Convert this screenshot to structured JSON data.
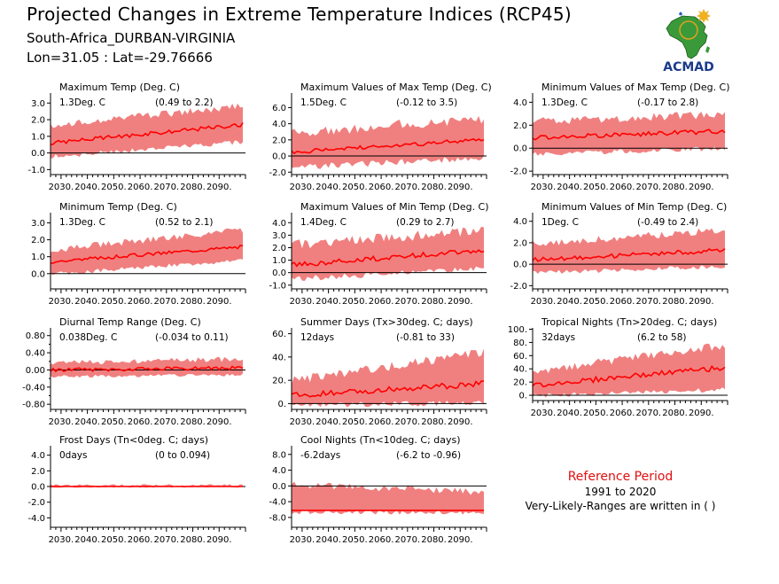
{
  "header": {
    "title": "Projected Changes in Extreme Temperature Indices (RCP45)",
    "location": "South-Africa_DURBAN-VIRGINIA",
    "coords": "Lon=31.05 : Lat=-29.76666"
  },
  "logo": {
    "text": "ACMAD",
    "icon": "africa-map-logo"
  },
  "reference": {
    "title": "Reference Period",
    "years": "1991 to 2020",
    "note": "Very-Likely-Ranges are written in ( )"
  },
  "colors": {
    "band": "#f08080",
    "line": "#ff0000",
    "axis": "#000000",
    "ref_title": "#e01010"
  },
  "chart_data": [
    {
      "type": "area",
      "title": "Maximum Temp (Deg. C)",
      "change": "1.3Deg. C",
      "range": "(0.49 to 2.2)",
      "x_ticks": [
        "2030.",
        "2040.",
        "2050.",
        "2060.",
        "2070.",
        "2080.",
        "2090."
      ],
      "xlim": [
        2026,
        2100
      ],
      "ylim": [
        -1.3,
        3.6
      ],
      "y_ticks": [
        -1.0,
        0.0,
        1.0,
        2.0,
        3.0
      ],
      "y_tick_labels": [
        "-1.0",
        "0.0",
        "1.0",
        "2.0",
        "3.0"
      ],
      "trend": {
        "start": 0.6,
        "end": 1.7,
        "amp": 0.12
      },
      "band": {
        "lo_start": -0.1,
        "lo_end": 0.8,
        "hi_start": 1.4,
        "hi_end": 2.6,
        "amp": 0.45
      }
    },
    {
      "type": "area",
      "title": "Maximum Values of Max Temp (Deg. C)",
      "change": "1.5Deg. C",
      "range": "(-0.12 to 3.5)",
      "x_ticks": [
        "2030.",
        "2040.",
        "2050.",
        "2060.",
        "2070.",
        "2080.",
        "2090."
      ],
      "xlim": [
        2026,
        2100
      ],
      "ylim": [
        -2.3,
        7.8
      ],
      "y_ticks": [
        -2.0,
        0.0,
        2.0,
        4.0,
        6.0
      ],
      "y_tick_labels": [
        "-2.0",
        "0.0",
        "2.0",
        "4.0",
        "6.0"
      ],
      "trend": {
        "start": 0.5,
        "end": 2.0,
        "amp": 0.25
      },
      "band": {
        "lo_start": -1.0,
        "lo_end": 0.1,
        "hi_start": 2.2,
        "hi_end": 4.0,
        "amp": 1.3
      }
    },
    {
      "type": "area",
      "title": "Minimum Values of Max Temp (Deg. C)",
      "change": "1.3Deg. C",
      "range": "(-0.17 to 2.8)",
      "x_ticks": [
        "2030.",
        "2040.",
        "2050.",
        "2060.",
        "2070.",
        "2080.",
        "2090."
      ],
      "xlim": [
        2026,
        2100
      ],
      "ylim": [
        -2.3,
        4.8
      ],
      "y_ticks": [
        -2.0,
        0.0,
        2.0,
        4.0
      ],
      "y_tick_labels": [
        "-2.0",
        "0.0",
        "2.0",
        "4.0"
      ],
      "trend": {
        "start": 0.9,
        "end": 1.5,
        "amp": 0.2
      },
      "band": {
        "lo_start": -0.3,
        "lo_end": 0.2,
        "hi_start": 2.0,
        "hi_end": 2.6,
        "amp": 0.7
      }
    },
    {
      "type": "area",
      "title": "Minimum Temp (Deg. C)",
      "change": "1.3Deg. C",
      "range": "(0.52 to 2.1)",
      "x_ticks": [
        "2030.",
        "2040.",
        "2050.",
        "2060.",
        "2070.",
        "2080.",
        "2090."
      ],
      "xlim": [
        2026,
        2100
      ],
      "ylim": [
        -0.9,
        3.6
      ],
      "y_ticks": [
        0.0,
        1.0,
        2.0,
        3.0
      ],
      "y_tick_labels": [
        "0.0",
        "1.0",
        "2.0",
        "3.0"
      ],
      "trend": {
        "start": 0.7,
        "end": 1.6,
        "amp": 0.1
      },
      "band": {
        "lo_start": 0.1,
        "lo_end": 0.9,
        "hi_start": 1.2,
        "hi_end": 2.4,
        "amp": 0.4
      }
    },
    {
      "type": "area",
      "title": "Maximum Values of Min Temp (Deg. C)",
      "change": "1.4Deg. C",
      "range": "(0.29 to 2.7)",
      "x_ticks": [
        "2030.",
        "2040.",
        "2050.",
        "2060.",
        "2070.",
        "2080.",
        "2090."
      ],
      "xlim": [
        2026,
        2100
      ],
      "ylim": [
        -1.3,
        4.8
      ],
      "y_ticks": [
        -1.0,
        0.0,
        1.0,
        2.0,
        3.0,
        4.0
      ],
      "y_tick_labels": [
        "-1.0",
        "0.0",
        "1.0",
        "2.0",
        "3.0",
        "4.0"
      ],
      "trend": {
        "start": 0.6,
        "end": 1.8,
        "amp": 0.2
      },
      "band": {
        "lo_start": -0.3,
        "lo_end": 0.6,
        "hi_start": 1.8,
        "hi_end": 3.0,
        "amp": 0.8
      }
    },
    {
      "type": "area",
      "title": "Minimum Values of Min Temp (Deg. C)",
      "change": "1Deg. C",
      "range": "(-0.49 to 2.4)",
      "x_ticks": [
        "2030.",
        "2040.",
        "2050.",
        "2060.",
        "2070.",
        "2080.",
        "2090."
      ],
      "xlim": [
        2026,
        2100
      ],
      "ylim": [
        -2.3,
        4.8
      ],
      "y_ticks": [
        -2.0,
        0.0,
        2.0,
        4.0
      ],
      "y_tick_labels": [
        "-2.0",
        "0.0",
        "2.0",
        "4.0"
      ],
      "trend": {
        "start": 0.4,
        "end": 1.3,
        "amp": 0.2
      },
      "band": {
        "lo_start": -0.6,
        "lo_end": 0.0,
        "hi_start": 1.6,
        "hi_end": 2.8,
        "amp": 0.7
      }
    },
    {
      "type": "area",
      "title": "Diurnal Temp Range (Deg. C)",
      "change": "0.038Deg. C",
      "range": "(-0.034 to 0.11)",
      "x_ticks": [
        "2030.",
        "2040.",
        "2050.",
        "2060.",
        "2070.",
        "2080.",
        "2090."
      ],
      "xlim": [
        2026,
        2100
      ],
      "ylim": [
        -0.92,
        0.98
      ],
      "y_ticks": [
        -0.8,
        -0.4,
        0.0,
        0.4,
        0.8
      ],
      "y_tick_labels": [
        "-0.80",
        "-0.40",
        "0.00",
        "0.40",
        "0.80"
      ],
      "y_minor": [
        -0.6,
        -0.2,
        0.2,
        0.6
      ],
      "trend": {
        "start": 0.0,
        "end": 0.05,
        "amp": 0.04
      },
      "band": {
        "lo_start": -0.12,
        "lo_end": -0.08,
        "hi_start": 0.1,
        "hi_end": 0.2,
        "amp": 0.12
      }
    },
    {
      "type": "area",
      "title": "Summer Days (Tx>30deg. C; days)",
      "change": "12days",
      "range": "(-0.81 to 33)",
      "x_ticks": [
        "2030.",
        "2040.",
        "2050.",
        "2060.",
        "2070.",
        "2080.",
        "2090."
      ],
      "xlim": [
        2026,
        2100
      ],
      "ylim": [
        -5,
        65
      ],
      "y_ticks": [
        0,
        20,
        40,
        60
      ],
      "y_tick_labels": [
        "0.",
        "20.",
        "40.",
        "60."
      ],
      "trend": {
        "start": 7,
        "end": 17,
        "amp": 2.5
      },
      "band": {
        "lo_start": 1,
        "lo_end": 3,
        "hi_start": 16,
        "hi_end": 40,
        "amp": 8
      }
    },
    {
      "type": "area",
      "title": "Tropical Nights (Tn>20deg. C; days)",
      "change": "32days",
      "range": "(6.2 to 58)",
      "x_ticks": [
        "2030.",
        "2040.",
        "2050.",
        "2060.",
        "2070.",
        "2080.",
        "2090."
      ],
      "xlim": [
        2026,
        2100
      ],
      "ylim": [
        -8,
        102
      ],
      "y_ticks": [
        0,
        20,
        40,
        60,
        80,
        100
      ],
      "y_tick_labels": [
        "0.",
        "20.",
        "40.",
        "60.",
        "80.",
        "100."
      ],
      "trend": {
        "start": 15,
        "end": 42,
        "amp": 4
      },
      "band": {
        "lo_start": 3,
        "lo_end": 12,
        "hi_start": 30,
        "hi_end": 70,
        "amp": 12
      }
    },
    {
      "type": "area",
      "title": "Frost Days (Tn<0deg. C; days)",
      "change": "0days",
      "range": "(0 to 0.094)",
      "x_ticks": [
        "2030.",
        "2040.",
        "2050.",
        "2060.",
        "2070.",
        "2080.",
        "2090."
      ],
      "xlim": [
        2026,
        2100
      ],
      "ylim": [
        -5.2,
        5.2
      ],
      "y_ticks": [
        -4,
        -2,
        0,
        2,
        4
      ],
      "y_tick_labels": [
        "-4.0",
        "-2.0",
        "0.0",
        "2.0",
        "4.0"
      ],
      "trend": {
        "start": 0,
        "end": 0,
        "amp": 0
      },
      "band": {
        "lo_start": 0,
        "lo_end": 0,
        "hi_start": 0.05,
        "hi_end": 0.05,
        "amp": 0.25
      }
    },
    {
      "type": "area",
      "title": "Cool Nights (Tn<10deg. C; days)",
      "change": "-6.2days",
      "range": "(-6.2 to -0.96)",
      "x_ticks": [
        "2030.",
        "2040.",
        "2050.",
        "2060.",
        "2070.",
        "2080.",
        "2090."
      ],
      "xlim": [
        2026,
        2100
      ],
      "ylim": [
        -10.5,
        10.2
      ],
      "y_ticks": [
        -8,
        -4,
        0,
        4,
        8
      ],
      "y_tick_labels": [
        "-8.0",
        "-4.0",
        "0.0",
        "4.0",
        "8.0"
      ],
      "trend": {
        "start": -6.2,
        "end": -6.2,
        "amp": 0
      },
      "band": {
        "lo_start": -6.2,
        "lo_end": -6.2,
        "hi_start": -0.5,
        "hi_end": -2.5,
        "amp": 1.8
      }
    }
  ]
}
